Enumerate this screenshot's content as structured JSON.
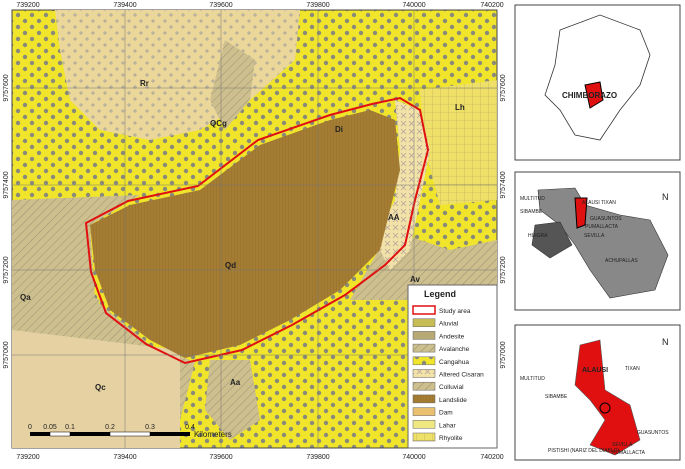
{
  "map": {
    "easting": [
      "739200",
      "739400",
      "739600",
      "739800",
      "740000",
      "740200"
    ],
    "northing": [
      "9757600",
      "9757400",
      "9757200",
      "9757000"
    ],
    "units": [
      "Rr",
      "QCg",
      "Di",
      "Lh",
      "AA",
      "Qd",
      "Av",
      "Qa",
      "Aa",
      "Qc"
    ],
    "legend": {
      "title": "Legend",
      "items": [
        "Study area",
        "Aluvial",
        "Andesite",
        "Avalanche",
        "Cangahua",
        "Altered Cisaran",
        "Colluvial",
        "Landslide",
        "Dam",
        "Lahar",
        "Rhyolite"
      ]
    },
    "scale": {
      "ticks": [
        "0",
        "0.05",
        "0.1",
        "0.2",
        "0.3",
        "0.4"
      ],
      "unit": "Kilometers"
    }
  },
  "inset_province": {
    "label": "CHIMBORAZO"
  },
  "inset_canton": {
    "labels": [
      "MULTITUD",
      "SIBAMBE",
      "ALAUSI TIXAN",
      "GUASUNTOS",
      "PUMALLACTA",
      "SEVILLA",
      "HUIGRA",
      "ACHUPALLAS"
    ],
    "north": "N"
  },
  "inset_parish": {
    "labels": [
      "MULTITUD",
      "ALAUSI",
      "TIXAN",
      "SIBAMBE",
      "GUASUNTOS",
      "PISTISHI (NARIZ DEL DIABLO)",
      "SEVILLA",
      "PUMALLACTA"
    ],
    "north": "N"
  }
}
